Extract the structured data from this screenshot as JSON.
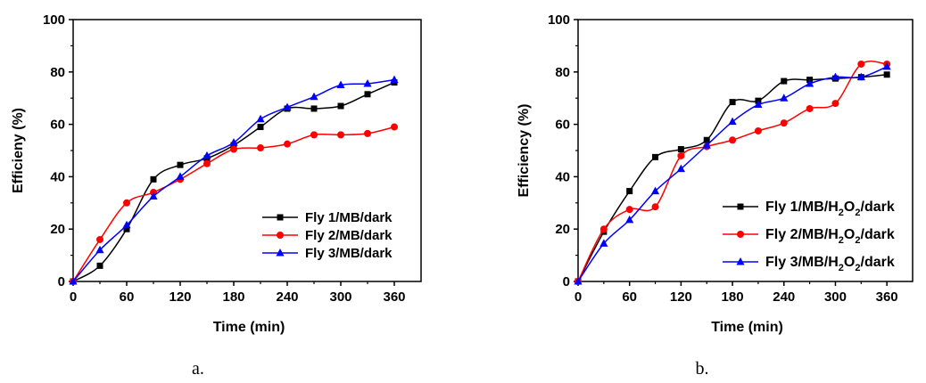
{
  "chart_data": [
    {
      "type": "line",
      "caption": "a.",
      "xlabel": "Time (min)",
      "ylabel": "Efficieny (%)",
      "xlim": [
        0,
        390
      ],
      "ylim": [
        0,
        100
      ],
      "xticks": [
        0,
        60,
        120,
        180,
        240,
        300,
        360
      ],
      "yticks": [
        0,
        20,
        40,
        60,
        80,
        100
      ],
      "legend_position": "lower-right",
      "series": [
        {
          "name": "Fly 1/MB/dark",
          "color": "#000000",
          "marker": "square",
          "x": [
            0,
            30,
            60,
            90,
            120,
            150,
            180,
            210,
            240,
            270,
            300,
            330,
            360
          ],
          "y": [
            0,
            6,
            20,
            39,
            44.5,
            47,
            52,
            59,
            66,
            66,
            67,
            71.5,
            76
          ]
        },
        {
          "name": "Fly 2/MB/dark",
          "color": "#ff0000",
          "marker": "circle",
          "x": [
            0,
            30,
            60,
            90,
            120,
            150,
            180,
            210,
            240,
            270,
            300,
            330,
            360
          ],
          "y": [
            0,
            16,
            30,
            34,
            39,
            45,
            50.5,
            51,
            52.5,
            56,
            56,
            56.5,
            59
          ]
        },
        {
          "name": "Fly 3/MB/dark",
          "color": "#0000ff",
          "marker": "triangle",
          "x": [
            0,
            30,
            60,
            90,
            120,
            150,
            180,
            210,
            240,
            270,
            300,
            330,
            360
          ],
          "y": [
            0,
            12,
            21.5,
            32.5,
            40,
            48,
            53,
            62,
            66.5,
            70.5,
            75,
            75.5,
            77
          ]
        }
      ]
    },
    {
      "type": "line",
      "caption": "b.",
      "xlabel": "Time (min)",
      "ylabel": "Efficiency (%)",
      "xlim": [
        0,
        390
      ],
      "ylim": [
        0,
        100
      ],
      "xticks": [
        0,
        60,
        120,
        180,
        240,
        300,
        360
      ],
      "yticks": [
        0,
        20,
        40,
        60,
        80,
        100
      ],
      "legend_position": "lower-right",
      "series": [
        {
          "name": "Fly 1/MB/H2O2/dark",
          "name_parts": [
            "Fly 1/MB/H",
            "2",
            "O",
            "2",
            "/dark"
          ],
          "color": "#000000",
          "marker": "square",
          "x": [
            0,
            30,
            60,
            90,
            120,
            150,
            180,
            210,
            240,
            270,
            300,
            330,
            360
          ],
          "y": [
            0,
            19,
            34.5,
            47.5,
            50.5,
            54,
            68.5,
            69,
            76.5,
            77,
            77.5,
            78,
            79
          ]
        },
        {
          "name": "Fly 2/MB/H2O2/dark",
          "name_parts": [
            "Fly 2/MB/H",
            "2",
            "O",
            "2",
            "/dark"
          ],
          "color": "#ff0000",
          "marker": "circle",
          "x": [
            0,
            30,
            60,
            90,
            120,
            150,
            180,
            210,
            240,
            270,
            300,
            330,
            360
          ],
          "y": [
            0,
            20,
            27.5,
            28.5,
            48,
            51.5,
            54,
            57.5,
            60.5,
            66,
            68,
            83,
            83
          ]
        },
        {
          "name": "Fly 3/MB/H2O2/dark",
          "name_parts": [
            "Fly 3/MB/H",
            "2",
            "O",
            "2",
            "/dark"
          ],
          "color": "#0000ff",
          "marker": "triangle",
          "x": [
            0,
            30,
            60,
            90,
            120,
            150,
            180,
            210,
            240,
            270,
            300,
            330,
            360
          ],
          "y": [
            0,
            14.5,
            23.5,
            34.5,
            43,
            52,
            61,
            67.5,
            70,
            75.5,
            78,
            78,
            82
          ]
        }
      ]
    }
  ]
}
